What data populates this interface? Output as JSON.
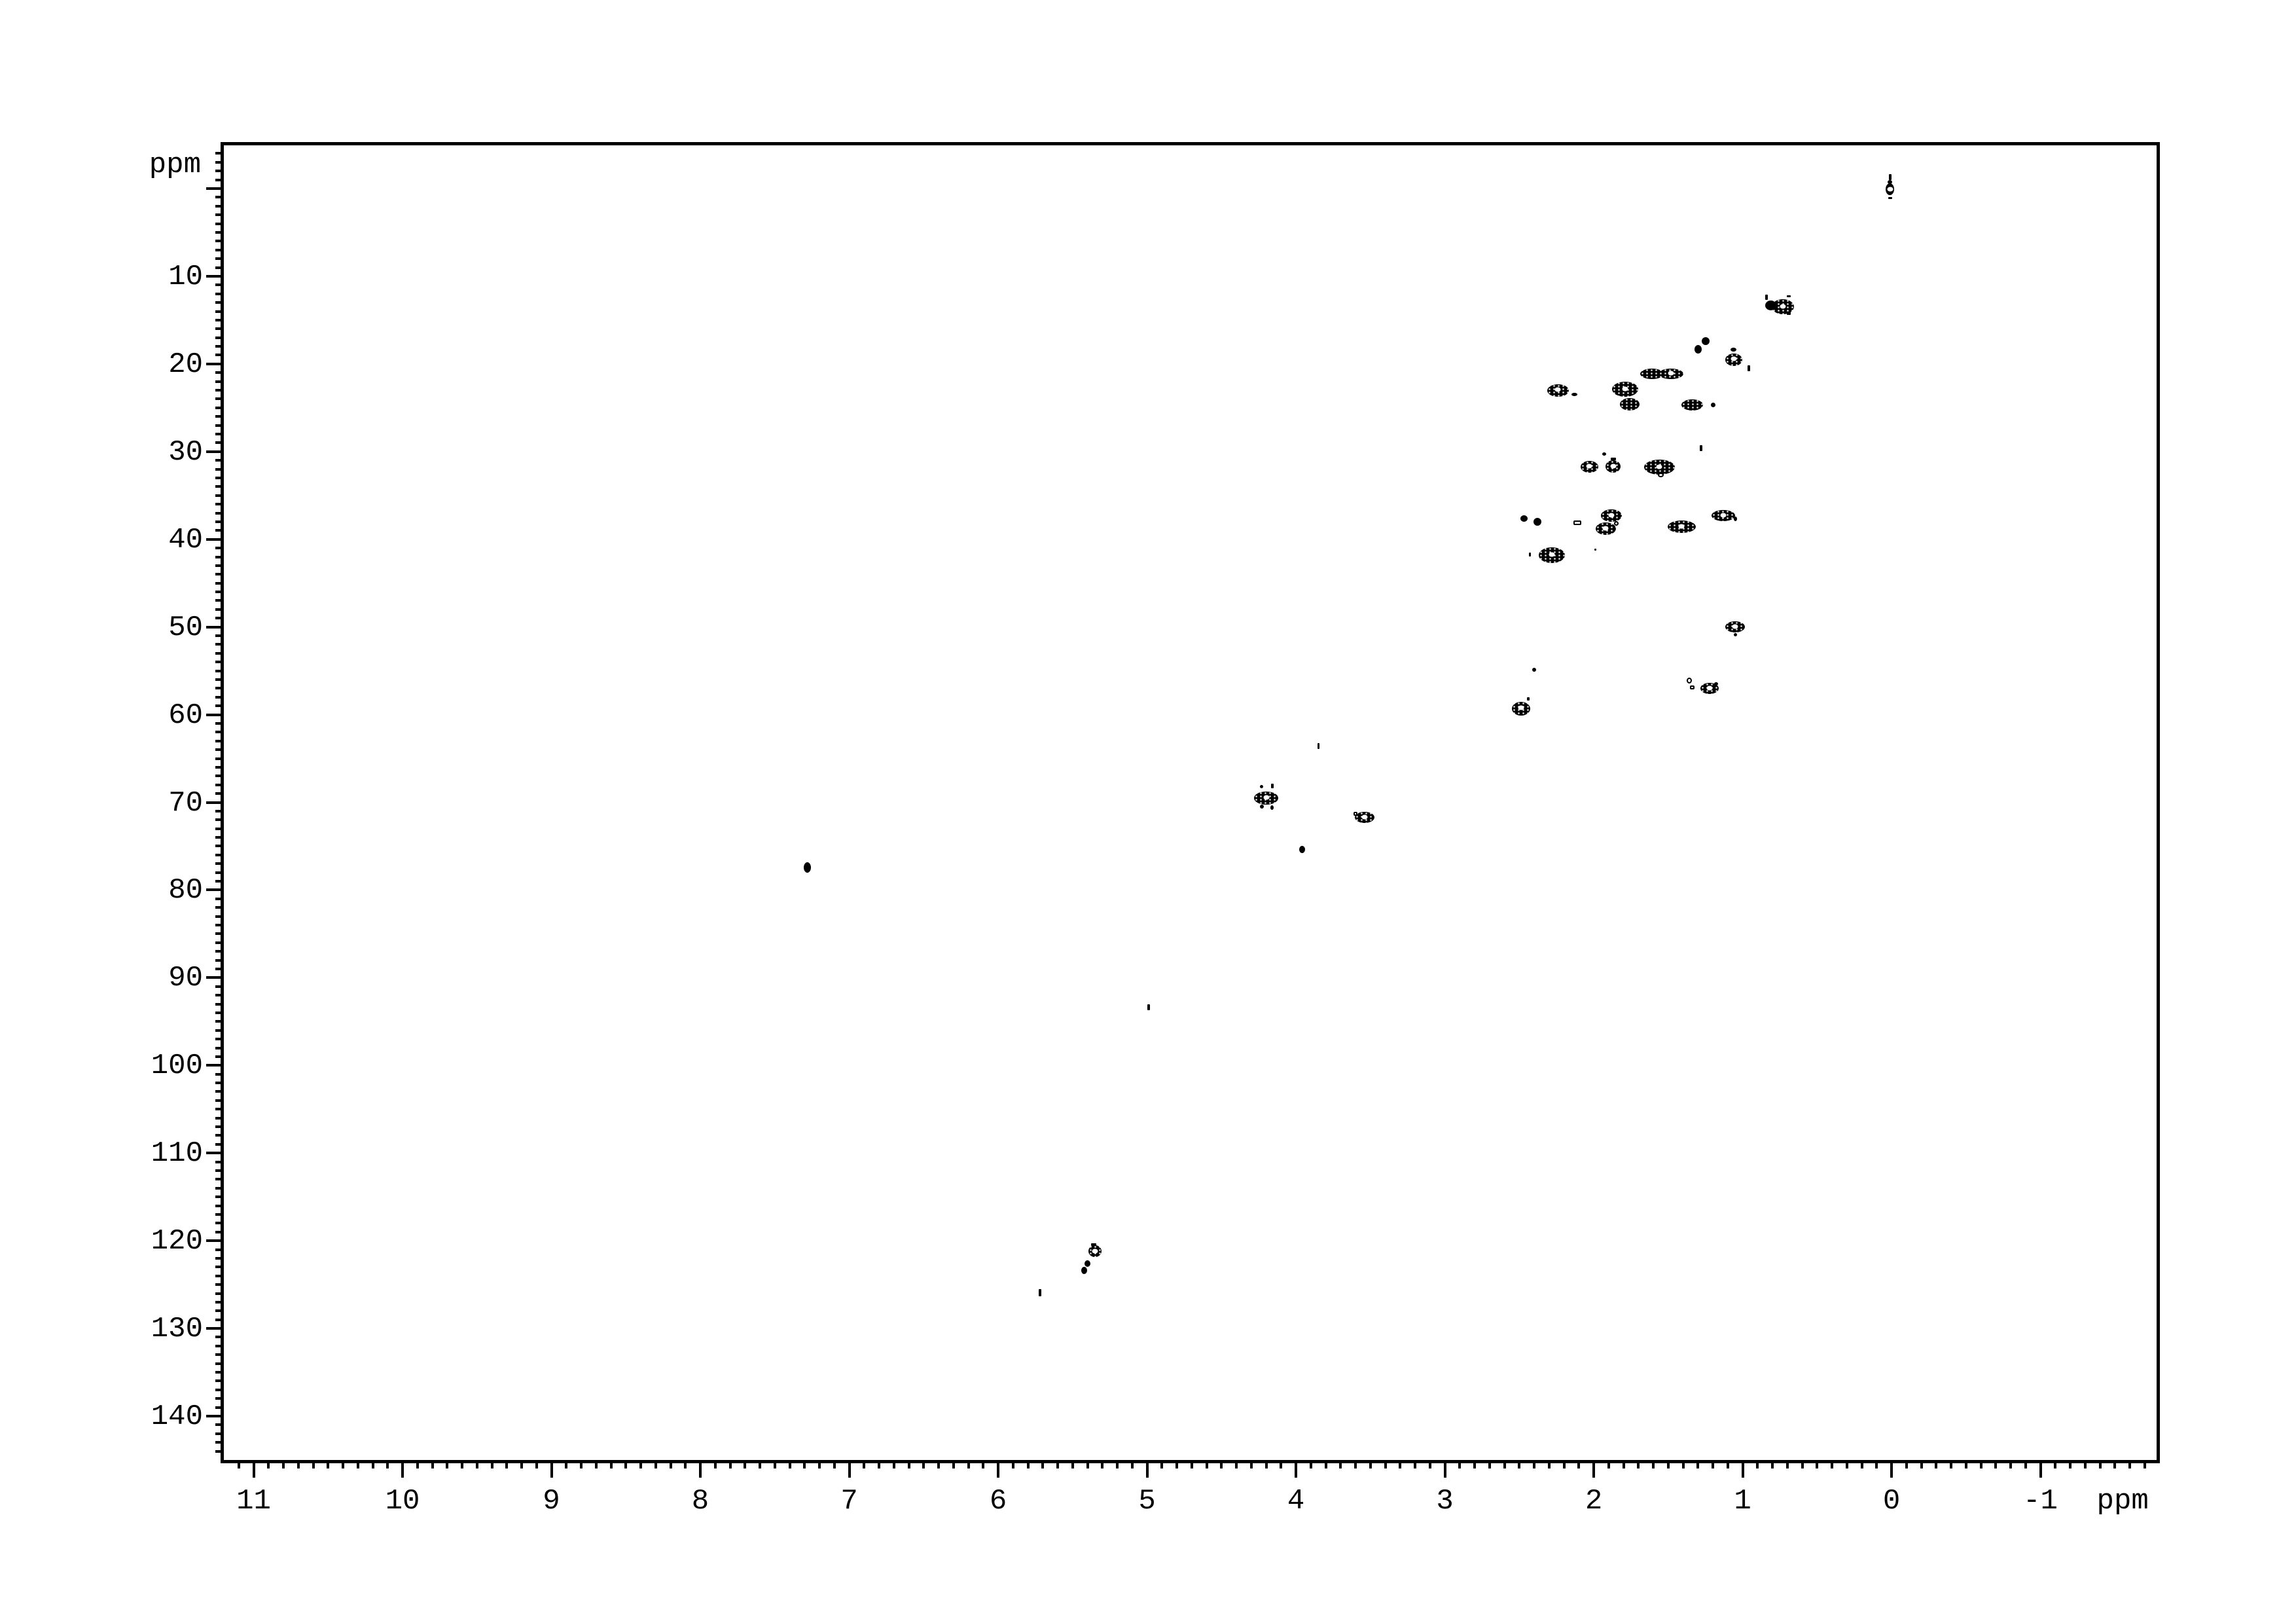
{
  "page": {
    "background": "#ffffff",
    "ink": "#000000"
  },
  "x_axis": {
    "unit_label": "ppm",
    "major_tick_labels": [
      "11",
      "10",
      "9",
      "8",
      "7",
      "6",
      "5",
      "4",
      "3",
      "2",
      "1",
      "0",
      "-1"
    ],
    "major_tick_values": [
      11,
      10,
      9,
      8,
      7,
      6,
      5,
      4,
      3,
      2,
      1,
      0,
      -1
    ],
    "minor_step": 0.1
  },
  "y_axis": {
    "unit_label": "ppm",
    "major_tick_labels": [
      "10",
      "20",
      "30",
      "40",
      "50",
      "60",
      "70",
      "80",
      "90",
      "100",
      "110",
      "120",
      "130",
      "140"
    ],
    "major_tick_values": [
      10,
      20,
      30,
      40,
      50,
      60,
      70,
      80,
      90,
      100,
      110,
      120,
      130,
      140
    ],
    "unlabeled_major_values": [
      0
    ],
    "minor_step": 1
  },
  "chart_data": {
    "type": "scatter",
    "xlabel": "ppm",
    "ylabel": "ppm",
    "xlim": [
      11.2,
      -1.78
    ],
    "ylim": [
      -4.93,
      145.0
    ],
    "x_ticks": [
      11,
      10,
      9,
      8,
      7,
      6,
      5,
      4,
      3,
      2,
      1,
      0,
      -1
    ],
    "y_ticks": [
      0,
      10,
      20,
      30,
      40,
      50,
      60,
      70,
      80,
      90,
      100,
      110,
      120,
      130,
      140
    ],
    "grid": false,
    "legend": null,
    "peaks": [
      {
        "h": 0.01,
        "c": 0.1,
        "w": 13,
        "ht": 18,
        "shape": "e",
        "hole": true
      },
      {
        "h": 0.01,
        "c": -1.3,
        "w": 4,
        "ht": 9,
        "shape": "r",
        "hole": false
      },
      {
        "h": 0.01,
        "c": -0.75,
        "w": 7,
        "ht": 6,
        "shape": "e",
        "hole": false
      },
      {
        "h": 0.01,
        "c": 1.1,
        "w": 6,
        "ht": 3,
        "shape": "r",
        "hole": false
      },
      {
        "h": 0.73,
        "c": 13.5,
        "w": 34,
        "ht": 23,
        "shape": "e",
        "hole": true
      },
      {
        "h": 0.81,
        "c": 13.3,
        "w": 17,
        "ht": 15,
        "shape": "e",
        "hole": false
      },
      {
        "h": 0.84,
        "c": 12.4,
        "w": 4,
        "ht": 8,
        "shape": "r",
        "hole": false
      },
      {
        "h": 0.69,
        "c": 12.3,
        "w": 6,
        "ht": 3,
        "shape": "r",
        "hole": false
      },
      {
        "h": 0.69,
        "c": 14.2,
        "w": 6,
        "ht": 5,
        "shape": "r",
        "hole": false
      },
      {
        "h": 1.25,
        "c": 17.4,
        "w": 12,
        "ht": 12,
        "shape": "e",
        "hole": false
      },
      {
        "h": 1.3,
        "c": 18.3,
        "w": 11,
        "ht": 13,
        "shape": "e",
        "hole": false
      },
      {
        "h": 1.06,
        "c": 19.5,
        "w": 26,
        "ht": 19,
        "shape": "e",
        "hole": true
      },
      {
        "h": 1.06,
        "c": 18.4,
        "w": 9,
        "ht": 6,
        "shape": "e",
        "hole": false
      },
      {
        "h": 0.96,
        "c": 20.5,
        "w": 4,
        "ht": 9,
        "shape": "r",
        "hole": false
      },
      {
        "h": 1.61,
        "c": 21.1,
        "w": 36,
        "ht": 16,
        "shape": "e",
        "hole": false
      },
      {
        "h": 1.48,
        "c": 21.1,
        "w": 38,
        "ht": 16,
        "shape": "e",
        "hole": true
      },
      {
        "h": 2.24,
        "c": 23.0,
        "w": 33,
        "ht": 19,
        "shape": "e",
        "hole": true
      },
      {
        "h": 2.13,
        "c": 23.5,
        "w": 9,
        "ht": 5,
        "shape": "e",
        "hole": false
      },
      {
        "h": 1.79,
        "c": 22.9,
        "w": 40,
        "ht": 23,
        "shape": "e",
        "hole": true
      },
      {
        "h": 1.76,
        "c": 24.6,
        "w": 30,
        "ht": 19,
        "shape": "e",
        "hole": false
      },
      {
        "h": 1.34,
        "c": 24.7,
        "w": 33,
        "ht": 17,
        "shape": "e",
        "hole": false
      },
      {
        "h": 1.2,
        "c": 24.7,
        "w": 7,
        "ht": 7,
        "shape": "e",
        "hole": false
      },
      {
        "h": 1.28,
        "c": 29.6,
        "w": 4,
        "ht": 9,
        "shape": "r",
        "hole": false
      },
      {
        "h": 2.03,
        "c": 31.7,
        "w": 27,
        "ht": 18,
        "shape": "e",
        "hole": true
      },
      {
        "h": 1.87,
        "c": 31.7,
        "w": 23,
        "ht": 19,
        "shape": "e",
        "hole": true
      },
      {
        "h": 1.93,
        "c": 30.3,
        "w": 6,
        "ht": 5,
        "shape": "e",
        "hole": false
      },
      {
        "h": 1.87,
        "c": 30.8,
        "w": 8,
        "ht": 4,
        "shape": "r",
        "hole": false
      },
      {
        "h": 1.56,
        "c": 31.8,
        "w": 47,
        "ht": 23,
        "shape": "e",
        "hole": true
      },
      {
        "h": 1.55,
        "c": 32.7,
        "w": 9,
        "ht": 7,
        "shape": "o",
        "hole": false
      },
      {
        "h": 2.47,
        "c": 37.6,
        "w": 11,
        "ht": 10,
        "shape": "e",
        "hole": false
      },
      {
        "h": 2.38,
        "c": 38.0,
        "w": 12,
        "ht": 12,
        "shape": "e",
        "hole": false
      },
      {
        "h": 2.11,
        "c": 38.1,
        "w": 12,
        "ht": 7,
        "shape": "or",
        "hole": false
      },
      {
        "h": 1.88,
        "c": 37.3,
        "w": 32,
        "ht": 19,
        "shape": "e",
        "hole": true
      },
      {
        "h": 1.92,
        "c": 38.8,
        "w": 31,
        "ht": 19,
        "shape": "e",
        "hole": true
      },
      {
        "h": 1.85,
        "c": 38.2,
        "w": 7,
        "ht": 7,
        "shape": "o",
        "hole": false
      },
      {
        "h": 1.41,
        "c": 38.6,
        "w": 43,
        "ht": 19,
        "shape": "e",
        "hole": true
      },
      {
        "h": 1.13,
        "c": 37.3,
        "w": 36,
        "ht": 17,
        "shape": "e",
        "hole": true
      },
      {
        "h": 1.05,
        "c": 37.7,
        "w": 5,
        "ht": 7,
        "shape": "e",
        "hole": false
      },
      {
        "h": 2.28,
        "c": 41.8,
        "w": 40,
        "ht": 24,
        "shape": "e",
        "hole": true
      },
      {
        "h": 2.43,
        "c": 41.7,
        "w": 3,
        "ht": 6,
        "shape": "r",
        "hole": false
      },
      {
        "h": 1.99,
        "c": 41.2,
        "w": 3,
        "ht": 3,
        "shape": "r",
        "hole": false
      },
      {
        "h": 1.05,
        "c": 50.0,
        "w": 30,
        "ht": 17,
        "shape": "e",
        "hole": true
      },
      {
        "h": 1.05,
        "c": 50.9,
        "w": 5,
        "ht": 5,
        "shape": "e",
        "hole": false
      },
      {
        "h": 2.4,
        "c": 54.9,
        "w": 6,
        "ht": 6,
        "shape": "e",
        "hole": false
      },
      {
        "h": 1.36,
        "c": 56.1,
        "w": 8,
        "ht": 9,
        "shape": "o",
        "hole": false
      },
      {
        "h": 1.34,
        "c": 56.9,
        "w": 7,
        "ht": 6,
        "shape": "or",
        "hole": false
      },
      {
        "h": 1.22,
        "c": 57.0,
        "w": 28,
        "ht": 17,
        "shape": "e",
        "hole": true
      },
      {
        "h": 1.18,
        "c": 56.5,
        "w": 6,
        "ht": 5,
        "shape": "e",
        "hole": false
      },
      {
        "h": 2.49,
        "c": 59.3,
        "w": 28,
        "ht": 21,
        "shape": "e",
        "hole": true
      },
      {
        "h": 2.44,
        "c": 58.2,
        "w": 4,
        "ht": 5,
        "shape": "r",
        "hole": false
      },
      {
        "h": 3.85,
        "c": 63.6,
        "w": 3,
        "ht": 9,
        "shape": "r",
        "hole": false
      },
      {
        "h": 4.2,
        "c": 69.5,
        "w": 37,
        "ht": 20,
        "shape": "e",
        "hole": true
      },
      {
        "h": 4.23,
        "c": 68.2,
        "w": 5,
        "ht": 5,
        "shape": "e",
        "hole": false
      },
      {
        "h": 4.16,
        "c": 68.1,
        "w": 4,
        "ht": 7,
        "shape": "r",
        "hole": false
      },
      {
        "h": 4.23,
        "c": 70.5,
        "w": 6,
        "ht": 6,
        "shape": "e",
        "hole": false
      },
      {
        "h": 4.16,
        "c": 70.6,
        "w": 5,
        "ht": 7,
        "shape": "e",
        "hole": false
      },
      {
        "h": 3.54,
        "c": 71.7,
        "w": 30,
        "ht": 17,
        "shape": "e",
        "hole": true
      },
      {
        "h": 3.6,
        "c": 71.3,
        "w": 6,
        "ht": 6,
        "shape": "or",
        "hole": false
      },
      {
        "h": 3.96,
        "c": 75.4,
        "w": 9,
        "ht": 11,
        "shape": "e",
        "hole": false
      },
      {
        "h": 7.28,
        "c": 77.4,
        "w": 11,
        "ht": 16,
        "shape": "e",
        "hole": false
      },
      {
        "h": 4.99,
        "c": 93.4,
        "w": 4,
        "ht": 9,
        "shape": "r",
        "hole": false
      },
      {
        "h": 5.35,
        "c": 121.2,
        "w": 20,
        "ht": 18,
        "shape": "e",
        "hole": true
      },
      {
        "h": 5.36,
        "c": 120.4,
        "w": 8,
        "ht": 4,
        "shape": "r",
        "hole": false
      },
      {
        "h": 5.4,
        "c": 122.6,
        "w": 9,
        "ht": 10,
        "shape": "e",
        "hole": false
      },
      {
        "h": 5.42,
        "c": 123.4,
        "w": 9,
        "ht": 11,
        "shape": "e",
        "hole": false
      },
      {
        "h": 5.72,
        "c": 125.9,
        "w": 4,
        "ht": 11,
        "shape": "r",
        "hole": false
      }
    ]
  }
}
